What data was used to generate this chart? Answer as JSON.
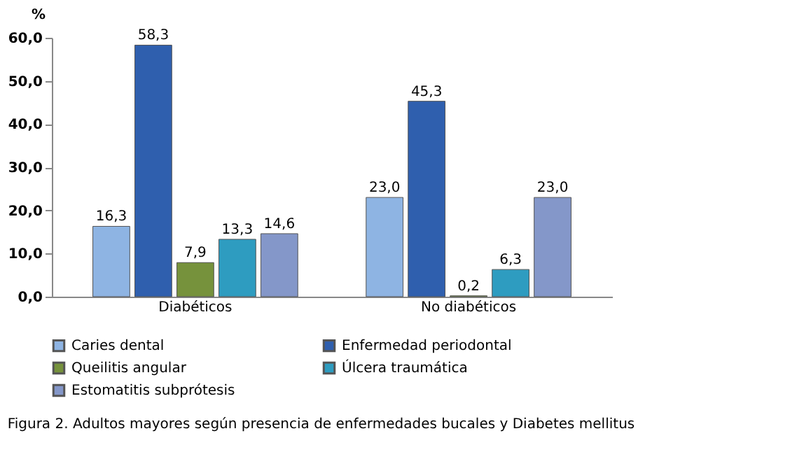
{
  "chart_data": {
    "type": "bar",
    "ylabel": "%",
    "categories": [
      "Diabéticos",
      "No diabéticos"
    ],
    "series": [
      {
        "name": "Caries dental",
        "color": "#8eb4e3",
        "values": [
          16.3,
          23.0
        ],
        "value_labels": [
          "16,3",
          "23,0"
        ]
      },
      {
        "name": "Enfermedad periodontal",
        "color": "#2f5fae",
        "values": [
          58.3,
          45.3
        ],
        "value_labels": [
          "58,3",
          "45,3"
        ]
      },
      {
        "name": "Queilitis angular",
        "color": "#76923c",
        "values": [
          7.9,
          0.2
        ],
        "value_labels": [
          "7,9",
          "0,2"
        ]
      },
      {
        "name": "Úlcera traumática",
        "color": "#2e9cc0",
        "values": [
          13.3,
          6.3
        ],
        "value_labels": [
          "13,3",
          "6,3"
        ]
      },
      {
        "name": "Estomatitis subprótesis",
        "color": "#8497c9",
        "values": [
          14.6,
          23.0
        ],
        "value_labels": [
          "14,6",
          "23,0"
        ]
      }
    ],
    "ylim": [
      0,
      60
    ],
    "yticks": [
      {
        "value": 0,
        "label": "0,0"
      },
      {
        "value": 10,
        "label": "10,0"
      },
      {
        "value": 20,
        "label": "20,0"
      },
      {
        "value": 30,
        "label": "30,0"
      },
      {
        "value": 40,
        "label": "40,0"
      },
      {
        "value": 50,
        "label": "50,0"
      },
      {
        "value": 60,
        "label": "60,0"
      }
    ],
    "grid": false,
    "legend": "bottom",
    "annotations": [
      "Figura 2. Adultos mayores según presencia de enfermedades bucales y Diabetes mellitus"
    ]
  }
}
